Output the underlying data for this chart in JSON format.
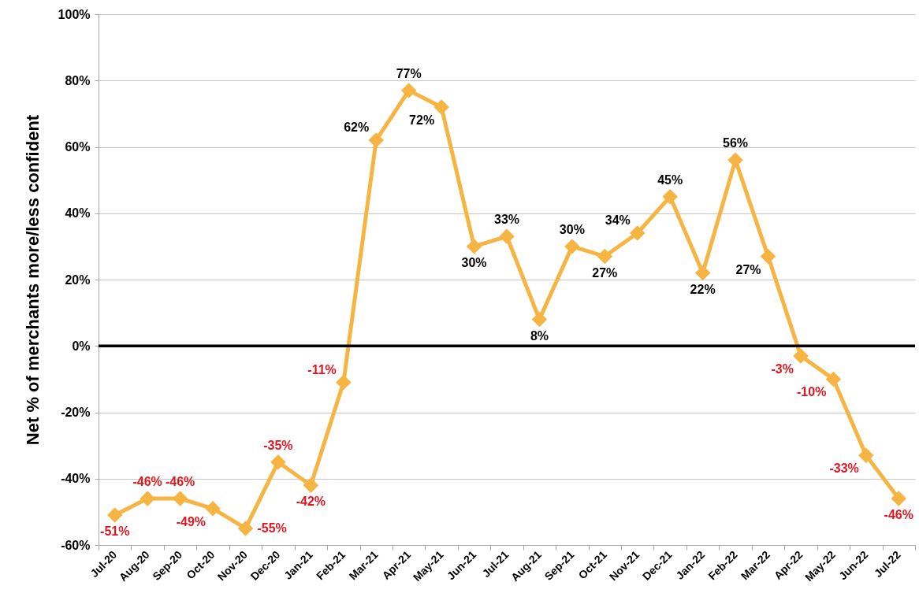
{
  "chart_data": {
    "type": "line",
    "ylabel": "Net % of merchants more/less confident",
    "categories": [
      "Jul-20",
      "Aug-20",
      "Sep-20",
      "Oct-20",
      "Nov-20",
      "Dec-20",
      "Jan-21",
      "Feb-21",
      "Mar-21",
      "Apr-21",
      "May-21",
      "Jun-21",
      "Jul-21",
      "Aug-21",
      "Sep-21",
      "Oct-21",
      "Nov-21",
      "Dec-21",
      "Jan-22",
      "Feb-22",
      "Mar-22",
      "Apr-22",
      "May-22",
      "Jun-22",
      "Jul-22"
    ],
    "values": [
      -51,
      -46,
      -46,
      -49,
      -55,
      -35,
      -42,
      -11,
      62,
      77,
      72,
      30,
      33,
      8,
      30,
      27,
      34,
      45,
      22,
      56,
      27,
      -3,
      -10,
      -33,
      -46
    ],
    "value_labels": [
      "-51%",
      "-46%",
      "-46%",
      "-49%",
      "-55%",
      "-35%",
      "-42%",
      "-11%",
      "62%",
      "77%",
      "72%",
      "30%",
      "33%",
      "8%",
      "30%",
      "27%",
      "34%",
      "45%",
      "22%",
      "56%",
      "27%",
      "-3%",
      "-10%",
      "-33%",
      "-46%"
    ],
    "color": "#f6b443",
    "marker": "diamond",
    "line_style": "solid",
    "ylim": [
      -60,
      100
    ],
    "yticks": [
      {
        "value": -60,
        "label": "-60%"
      },
      {
        "value": -40,
        "label": "-40%"
      },
      {
        "value": -20,
        "label": "-20%"
      },
      {
        "value": 0,
        "label": "0%"
      },
      {
        "value": 20,
        "label": "20%"
      },
      {
        "value": 40,
        "label": "40%"
      },
      {
        "value": 60,
        "label": "60%"
      },
      {
        "value": 80,
        "label": "80%"
      },
      {
        "value": 100,
        "label": "100%"
      }
    ],
    "grid": "y",
    "ref_lines": [
      {
        "axis": "y",
        "value": 0,
        "color": "#000000"
      }
    ]
  }
}
